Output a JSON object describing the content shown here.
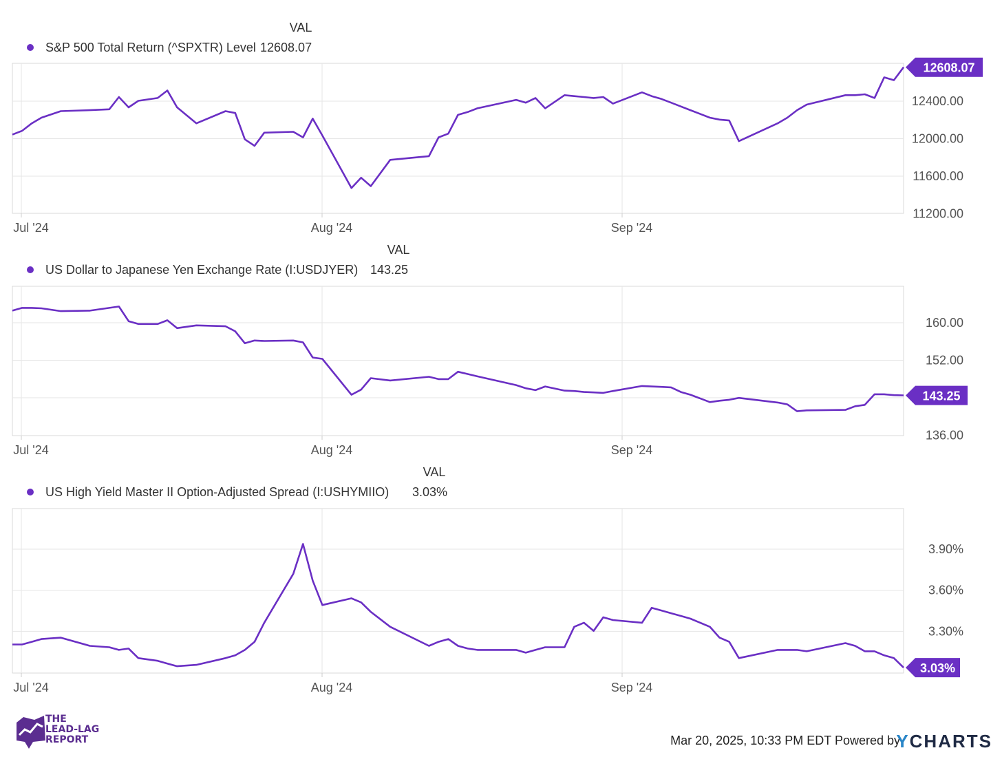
{
  "chart_data": [
    {
      "type": "line",
      "header": "VAL",
      "series": [
        {
          "name": "S&P 500 Total Return (^SPXTR) Level",
          "last_value": "12608.07"
        }
      ],
      "x_tick_labels": [
        "Jul '24",
        "Aug '24",
        "Sep '24"
      ],
      "y_tick_labels": [
        "12400.00",
        "12000.00",
        "11600.00",
        "11200.00"
      ],
      "ylim": [
        11050,
        12650
      ],
      "color": "#6a2fc4",
      "x": [
        0,
        1,
        2,
        3,
        5,
        8,
        10,
        11,
        12,
        13,
        15,
        16,
        17,
        19,
        22,
        23,
        24,
        25,
        26,
        29,
        30,
        31,
        32,
        35,
        36,
        37,
        39,
        43,
        44,
        45,
        46,
        47,
        48,
        52,
        53,
        54,
        55,
        57,
        58,
        59,
        60,
        61,
        62,
        65,
        66,
        67,
        68,
        69,
        70,
        72,
        73,
        74,
        75,
        79,
        80,
        81,
        82,
        86,
        87,
        88,
        89,
        90,
        91,
        92
      ],
      "values": [
        11890,
        11930,
        12010,
        12070,
        12140,
        12150,
        12160,
        12290,
        12180,
        12250,
        12280,
        12360,
        12180,
        12010,
        12140,
        12120,
        11840,
        11770,
        11910,
        11920,
        11860,
        12060,
        11880,
        11320,
        11430,
        11340,
        11620,
        11660,
        11860,
        11900,
        12100,
        12130,
        12170,
        12260,
        12230,
        12280,
        12170,
        12310,
        12300,
        12290,
        12280,
        12290,
        12220,
        12340,
        12300,
        12270,
        12230,
        12190,
        12150,
        12070,
        12050,
        12040,
        11820,
        12010,
        12070,
        12150,
        12210,
        12310,
        12310,
        12320,
        12280,
        12500,
        12470,
        12608.07
      ]
    },
    {
      "type": "line",
      "header": "VAL",
      "series": [
        {
          "name": "US Dollar to Japanese Yen Exchange Rate (I:USDJYER)",
          "last_value": "143.25"
        }
      ],
      "x_tick_labels": [
        "Jul '24",
        "Aug '24",
        "Sep '24"
      ],
      "y_tick_labels": [
        "160.00",
        "152.00",
        "144.00",
        "136.00"
      ],
      "ylim": [
        134.5,
        167
      ],
      "color": "#6a2fc4",
      "x": [
        0,
        1,
        2,
        3,
        5,
        8,
        10,
        11,
        12,
        13,
        15,
        16,
        17,
        19,
        22,
        23,
        24,
        25,
        26,
        29,
        30,
        31,
        32,
        35,
        36,
        37,
        39,
        43,
        44,
        45,
        46,
        47,
        48,
        52,
        53,
        54,
        55,
        57,
        58,
        59,
        60,
        61,
        62,
        65,
        66,
        67,
        68,
        69,
        70,
        72,
        73,
        74,
        75,
        79,
        80,
        81,
        82,
        86,
        87,
        88,
        89,
        90,
        91,
        92
      ],
      "values": [
        161.7,
        162.3,
        162.3,
        162.2,
        161.6,
        161.7,
        162.3,
        162.6,
        159.4,
        158.8,
        158.8,
        159.6,
        157.9,
        158.5,
        158.3,
        157.2,
        154.6,
        155.2,
        155.1,
        155.2,
        154.8,
        151.5,
        151.2,
        143.4,
        144.5,
        147.0,
        146.5,
        147.3,
        146.8,
        146.8,
        148.4,
        147.9,
        147.4,
        145.5,
        144.8,
        144.4,
        145.2,
        144.3,
        144.2,
        144.0,
        143.9,
        143.8,
        144.2,
        145.3,
        145.2,
        145.1,
        145.0,
        144.0,
        143.4,
        141.8,
        142.1,
        142.3,
        142.7,
        141.7,
        141.3,
        139.8,
        140.0,
        140.1,
        140.9,
        141.2,
        143.5,
        143.5,
        143.3,
        143.25
      ]
    },
    {
      "type": "line",
      "header": "VAL",
      "series": [
        {
          "name": "US High Yield Master II Option-Adjusted Spread (I:USHYMIIO)",
          "last_value": "3.03%"
        }
      ],
      "x_tick_labels": [
        "Jul '24",
        "Aug '24",
        "Sep '24"
      ],
      "y_tick_labels": [
        "3.90%",
        "3.60%",
        "3.30%"
      ],
      "ylim": [
        2.99,
        4.2
      ],
      "color": "#6a2fc4",
      "x": [
        0,
        1,
        2,
        3,
        5,
        8,
        10,
        11,
        12,
        13,
        15,
        16,
        17,
        19,
        22,
        23,
        24,
        25,
        26,
        29,
        30,
        31,
        32,
        35,
        36,
        37,
        39,
        43,
        44,
        45,
        46,
        47,
        48,
        52,
        53,
        54,
        55,
        57,
        58,
        59,
        60,
        61,
        62,
        65,
        66,
        67,
        68,
        69,
        70,
        72,
        73,
        74,
        75,
        79,
        80,
        81,
        82,
        86,
        87,
        88,
        89,
        90,
        91,
        92
      ],
      "values": [
        3.2,
        3.2,
        3.22,
        3.24,
        3.25,
        3.19,
        3.18,
        3.16,
        3.17,
        3.1,
        3.08,
        3.06,
        3.04,
        3.05,
        3.1,
        3.12,
        3.16,
        3.22,
        3.36,
        3.72,
        3.94,
        3.67,
        3.49,
        3.54,
        3.51,
        3.44,
        3.33,
        3.19,
        3.22,
        3.24,
        3.19,
        3.17,
        3.16,
        3.16,
        3.14,
        3.16,
        3.18,
        3.18,
        3.33,
        3.36,
        3.3,
        3.4,
        3.38,
        3.36,
        3.47,
        3.45,
        3.43,
        3.41,
        3.39,
        3.33,
        3.25,
        3.22,
        3.1,
        3.16,
        3.16,
        3.16,
        3.15,
        3.21,
        3.19,
        3.15,
        3.15,
        3.12,
        3.1,
        3.03
      ]
    }
  ],
  "footer": {
    "timestamp": "Mar 20, 2025, 10:33 PM EDT Powered by",
    "brand_y": "Y",
    "brand_rest": "CHARTS",
    "logo_text": "THE\nLEAD-LAG\nREPORT"
  }
}
